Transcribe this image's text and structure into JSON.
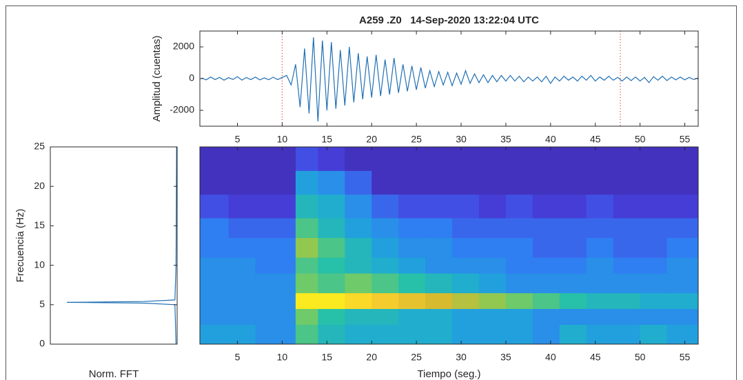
{
  "chart_data": [
    {
      "type": "line",
      "title": "A259 .Z0   14-Sep-2020 13:22:04 UTC",
      "ylabel": "Amplitud (cuentas)",
      "xlim": [
        0.8,
        56.5
      ],
      "ylim": [
        -3000,
        3000
      ],
      "xticks": [
        5,
        10,
        15,
        20,
        25,
        30,
        35,
        40,
        45,
        50,
        55
      ],
      "yticks": [
        -2000,
        0,
        2000
      ],
      "markers": [
        10,
        47.8
      ],
      "marker_color": "#d62728",
      "x": [
        1,
        1.5,
        2,
        2.5,
        3,
        3.5,
        4,
        4.5,
        5,
        5.5,
        6,
        6.5,
        7,
        7.5,
        8,
        8.5,
        9,
        9.5,
        10,
        10.5,
        11,
        11.5,
        12,
        12.5,
        13,
        13.5,
        14,
        14.5,
        15,
        15.5,
        16,
        16.5,
        17,
        17.5,
        18,
        18.5,
        19,
        19.5,
        20,
        20.5,
        21,
        21.5,
        22,
        22.5,
        23,
        23.5,
        24,
        24.5,
        25,
        25.5,
        26,
        26.5,
        27,
        27.5,
        28,
        28.5,
        29,
        29.5,
        30,
        30.5,
        31,
        31.5,
        32,
        32.5,
        33,
        33.5,
        34,
        34.5,
        35,
        35.5,
        36,
        36.5,
        37,
        37.5,
        38,
        38.5,
        39,
        39.5,
        40,
        40.5,
        41,
        41.5,
        42,
        42.5,
        43,
        43.5,
        44,
        44.5,
        45,
        45.5,
        46,
        46.5,
        47,
        47.5,
        48,
        48.5,
        49,
        49.5,
        50,
        50.5,
        51,
        51.5,
        52,
        52.5,
        53,
        53.5,
        54,
        54.5,
        55,
        55.5,
        56,
        56.5
      ],
      "series": [
        {
          "color": "#1f6fb4",
          "values": [
            50,
            -80,
            100,
            -60,
            80,
            -100,
            60,
            -50,
            120,
            -90,
            70,
            -60,
            100,
            -80,
            50,
            -70,
            90,
            -60,
            80,
            200,
            -400,
            900,
            -1800,
            1900,
            -2200,
            2600,
            -2700,
            2400,
            -2000,
            2300,
            -1900,
            1800,
            -1700,
            2000,
            -1500,
            1600,
            -1300,
            1400,
            -1200,
            1500,
            -1100,
            1200,
            -1000,
            1300,
            -900,
            900,
            -800,
            800,
            -700,
            700,
            -600,
            500,
            -500,
            450,
            -400,
            400,
            -450,
            350,
            -350,
            500,
            -300,
            300,
            -250,
            250,
            -250,
            200,
            -200,
            200,
            -150,
            200,
            -150,
            150,
            -200,
            100,
            -150,
            100,
            -200,
            150,
            -300,
            100,
            -150,
            150,
            -100,
            100,
            -150,
            150,
            -100,
            200,
            -150,
            100,
            -100,
            150,
            -100,
            80,
            -150,
            100,
            -120,
            100,
            -150,
            80,
            -250,
            120,
            -100,
            150,
            -120,
            100,
            -80,
            100,
            -80,
            80,
            -60,
            50
          ]
        }
      ]
    },
    {
      "type": "line",
      "xlabel": "Norm. FFT",
      "ylabel": "Frecuencia (Hz)",
      "xlim": [
        0,
        1.15
      ],
      "x_reverse": true,
      "ylim": [
        0,
        25
      ],
      "yticks": [
        0,
        5,
        10,
        15,
        20,
        25
      ],
      "y": [
        0,
        5,
        5.2,
        5.3,
        5.4,
        5.6,
        10,
        25
      ],
      "series": [
        {
          "color": "#1f6fb4",
          "values": [
            0.01,
            0.02,
            0.3,
            1,
            0.3,
            0.02,
            0.01,
            0.005
          ]
        }
      ]
    },
    {
      "type": "heatmap",
      "xlabel": "Tiempo (seg.)",
      "xlim": [
        0.8,
        56.5
      ],
      "ylim": [
        0,
        25
      ],
      "xticks": [
        5,
        10,
        15,
        20,
        25,
        30,
        35,
        40,
        45,
        50,
        55
      ],
      "colormap": [
        "#3e26a8",
        "#4743e0",
        "#2f7ff2",
        "#1fa8d8",
        "#27c0a8",
        "#81cc59",
        "#d8ba2e",
        "#fcd02d",
        "#f9fb15"
      ],
      "time_edges": [
        0.8,
        4,
        7,
        10,
        11.5,
        14,
        17,
        20,
        23,
        26,
        29,
        32,
        35,
        38,
        41,
        44,
        47,
        50,
        53,
        56.5
      ],
      "freq_edges": [
        0,
        2.5,
        4.5,
        6.5,
        9,
        11,
        13.5,
        16,
        19,
        22,
        25
      ],
      "z": [
        [
          0.35,
          0.35,
          0.3,
          0.3,
          0.55,
          0.45,
          0.4,
          0.4,
          0.4,
          0.4,
          0.35,
          0.35,
          0.35,
          0.3,
          0.4,
          0.35,
          0.35,
          0.4,
          0.35
        ],
        [
          0.3,
          0.3,
          0.3,
          0.3,
          0.6,
          0.5,
          0.45,
          0.45,
          0.4,
          0.4,
          0.35,
          0.35,
          0.35,
          0.3,
          0.3,
          0.3,
          0.3,
          0.3,
          0.3
        ],
        [
          0.3,
          0.3,
          0.3,
          0.3,
          0.95,
          0.95,
          0.9,
          0.85,
          0.8,
          0.75,
          0.7,
          0.65,
          0.6,
          0.55,
          0.5,
          0.45,
          0.45,
          0.4,
          0.4
        ],
        [
          0.3,
          0.3,
          0.3,
          0.3,
          0.6,
          0.55,
          0.6,
          0.55,
          0.5,
          0.45,
          0.4,
          0.35,
          0.3,
          0.3,
          0.3,
          0.3,
          0.3,
          0.3,
          0.3
        ],
        [
          0.3,
          0.3,
          0.25,
          0.25,
          0.55,
          0.5,
          0.45,
          0.4,
          0.35,
          0.3,
          0.3,
          0.3,
          0.25,
          0.25,
          0.25,
          0.3,
          0.25,
          0.25,
          0.3
        ],
        [
          0.25,
          0.25,
          0.25,
          0.25,
          0.65,
          0.55,
          0.45,
          0.35,
          0.3,
          0.3,
          0.25,
          0.25,
          0.25,
          0.2,
          0.2,
          0.25,
          0.2,
          0.2,
          0.25
        ],
        [
          0.25,
          0.2,
          0.2,
          0.2,
          0.55,
          0.45,
          0.35,
          0.3,
          0.25,
          0.25,
          0.2,
          0.2,
          0.2,
          0.2,
          0.2,
          0.2,
          0.2,
          0.2,
          0.2
        ],
        [
          0.15,
          0.1,
          0.1,
          0.1,
          0.45,
          0.4,
          0.3,
          0.2,
          0.15,
          0.15,
          0.15,
          0.1,
          0.15,
          0.1,
          0.1,
          0.15,
          0.1,
          0.1,
          0.1
        ],
        [
          0.05,
          0.05,
          0.05,
          0.05,
          0.35,
          0.3,
          0.2,
          0.05,
          0.05,
          0.05,
          0.05,
          0.05,
          0.05,
          0.05,
          0.05,
          0.05,
          0.05,
          0.05,
          0.05
        ],
        [
          0.05,
          0.05,
          0.05,
          0.05,
          0.15,
          0.1,
          0.05,
          0.05,
          0.05,
          0.05,
          0.05,
          0.05,
          0.05,
          0.05,
          0.05,
          0.05,
          0.05,
          0.05,
          0.05
        ]
      ]
    }
  ]
}
